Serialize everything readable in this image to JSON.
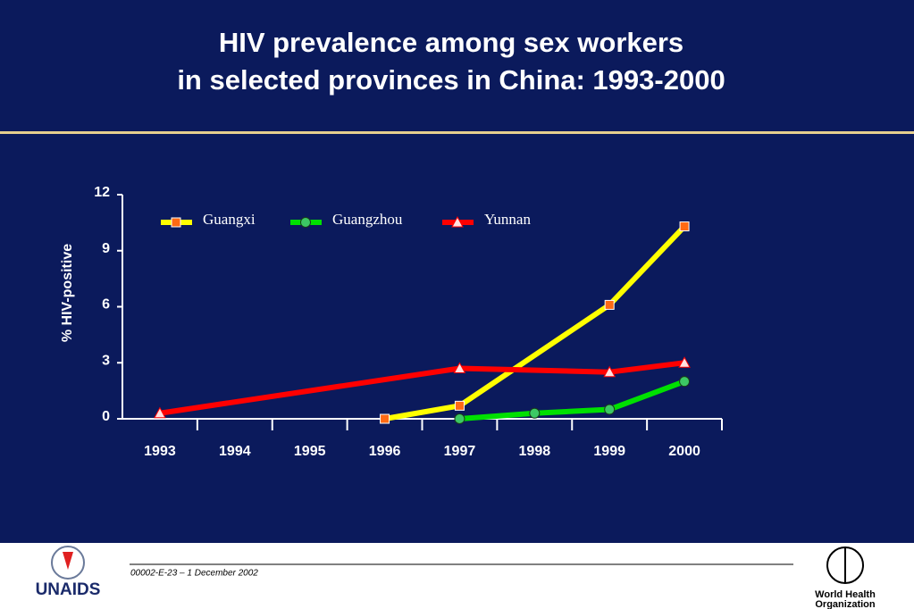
{
  "chart_data": {
    "type": "line",
    "title": [
      "HIV prevalence among sex workers",
      "in selected provinces in China:  1993-2000"
    ],
    "y_label": "% HIV-positive",
    "xlim": [
      1992.5,
      2000.5
    ],
    "xticks": [
      1993,
      1994,
      1995,
      1996,
      1997,
      1998,
      1999,
      2000
    ],
    "ylim": [
      0,
      12
    ],
    "yticks": [
      0,
      3,
      6,
      9,
      12
    ],
    "series": [
      {
        "name": "Guangxi",
        "color": "#ffff00",
        "marker": "square",
        "marker_color": "#ff6a13",
        "x": [
          1996,
          1997,
          1999,
          2000
        ],
        "values": [
          0,
          0.7,
          6.1,
          10.3
        ]
      },
      {
        "name": "Guangzhou",
        "color": "#00e000",
        "marker": "circle",
        "marker_color": "#3cc864",
        "x": [
          1997,
          1998,
          1999,
          2000
        ],
        "values": [
          0,
          0.3,
          0.5,
          2.0
        ]
      },
      {
        "name": "Yunnan",
        "color": "#ff0000",
        "marker": "triangle",
        "marker_color": "#ffe0e0",
        "x": [
          1993,
          1997,
          1999,
          2000
        ],
        "values": [
          0.3,
          2.7,
          2.5,
          3.0
        ]
      }
    ]
  },
  "footer": {
    "code": "00002-E-23 – 1 December 2002",
    "left_logo": "UNAIDS",
    "right_logo": [
      "World Health",
      "Organization"
    ]
  }
}
